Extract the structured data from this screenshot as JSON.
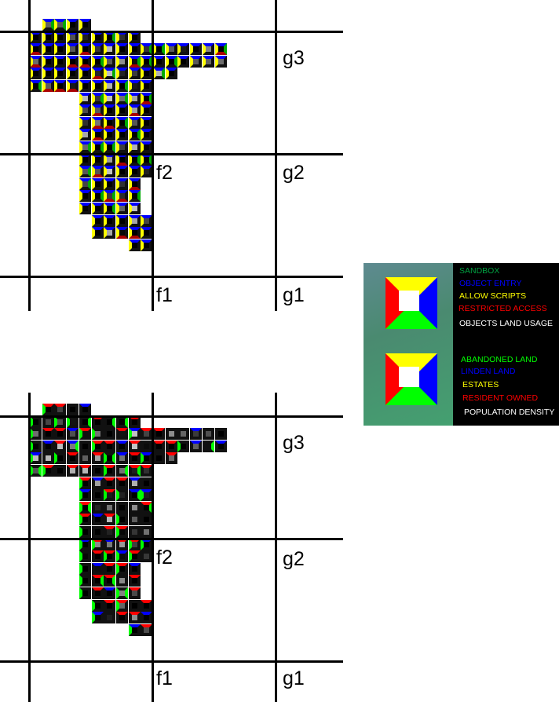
{
  "maps": [
    {
      "labels": {
        "g3": "g3",
        "f2": "f2",
        "g2": "g2",
        "f1": "f1",
        "g1": "g1"
      },
      "layer": "objects"
    },
    {
      "labels": {
        "g3": "g3",
        "f2": "f2",
        "g2": "g2",
        "f1": "f1",
        "g1": "g1"
      },
      "layer": "population"
    }
  ],
  "legend": {
    "group1": [
      "SANDBOX",
      "OBJECT ENTRY",
      "ALLOW SCRIPTS",
      "RESTRICTED ACCESS",
      "OBJECTS LAND USAGE"
    ],
    "group1_colors": [
      "#00a040",
      "#0000ff",
      "#ffff00",
      "#ff0000",
      "#ffffff"
    ],
    "group2": [
      "ABANDONED LAND",
      "LINDEN LAND",
      "ESTATES",
      "RESIDENT OWNED",
      "POPULATION DENSITY"
    ],
    "group2_colors": [
      "#00ff00",
      "#0000ff",
      "#ffff00",
      "#ff0000",
      "#ffffff"
    ]
  }
}
